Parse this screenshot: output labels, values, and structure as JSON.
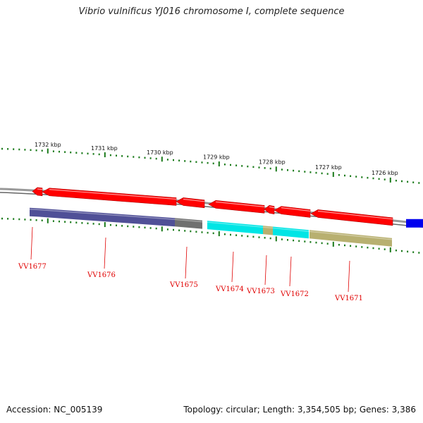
{
  "title": "Vibrio vulnificus YJ016 chromosome I, complete sequence",
  "footer": {
    "accession": "Accession: NC_005139",
    "summary": "Topology: circular; Length: 3,354,505 bp; Genes: 3,386"
  },
  "colors": {
    "gene_arrow": "#ff0000",
    "backbone": "#999999",
    "gene_label": "#e00000",
    "tick": "#1a7a1a",
    "other_feature": "#0000ee"
  },
  "tick_labels": [
    "1732 kbp",
    "1731 kbp",
    "1730 kbp",
    "1729 kbp",
    "1728 kbp",
    "1727 kbp",
    "1726 kbp"
  ],
  "genes": [
    {
      "label": "VV1677",
      "cog_color": "#505097"
    },
    {
      "label": "VV1676",
      "cog_color": "#505097"
    },
    {
      "label": "VV1675",
      "cog_color": "#707070"
    },
    {
      "label": "VV1674",
      "cog_color": "#00e5e5"
    },
    {
      "label": "VV1673",
      "cog_color": "#b8b070"
    },
    {
      "label": "VV1672",
      "cog_color": "#00e5e5"
    },
    {
      "label": "VV1671",
      "cog_color": "#b8b070"
    }
  ]
}
